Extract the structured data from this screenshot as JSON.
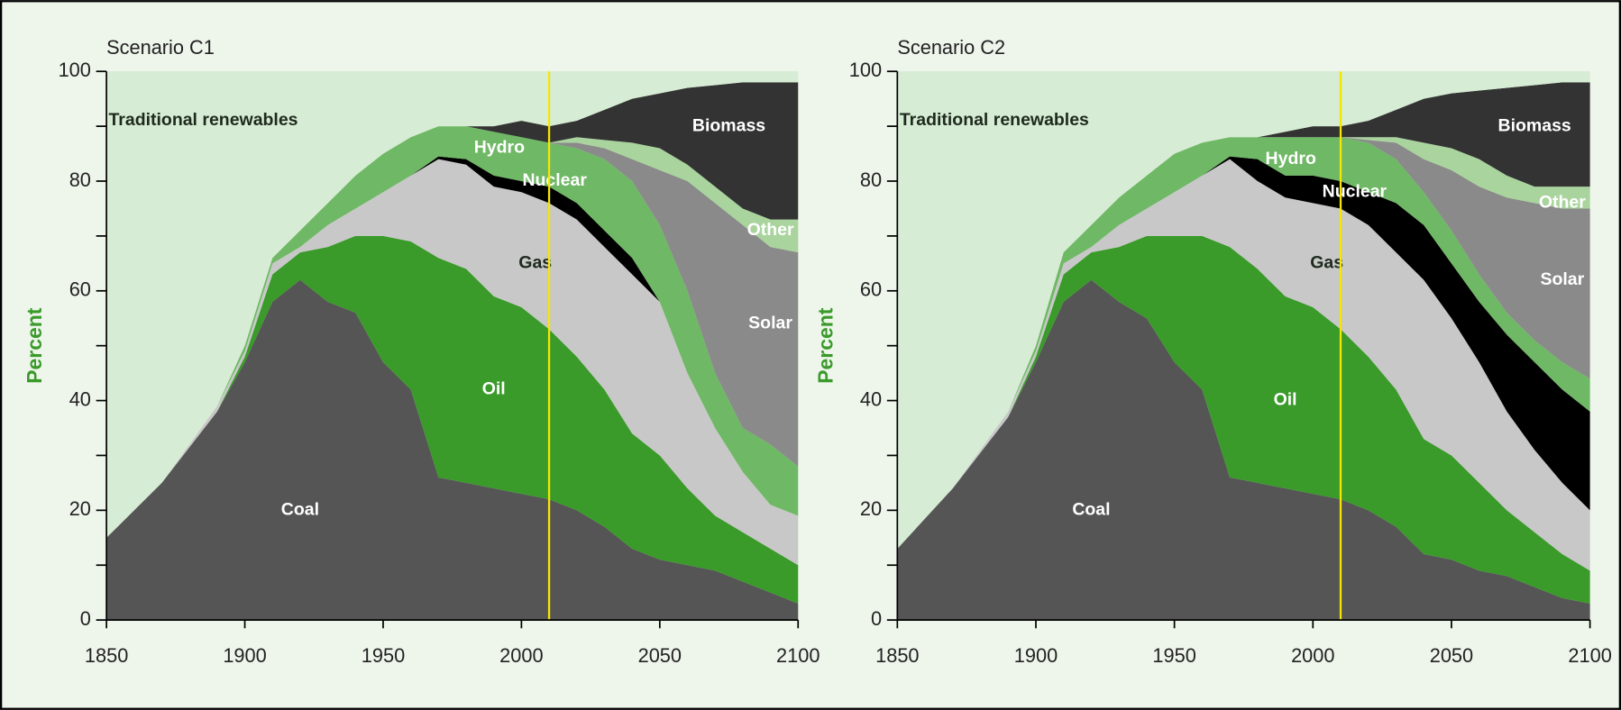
{
  "chart_data": [
    {
      "type": "area",
      "stacked": true,
      "title": "Scenario C1",
      "ylabel": "Percent",
      "ylabel_color": "#3a9a2a",
      "x": [
        1850,
        1870,
        1890,
        1900,
        1910,
        1920,
        1930,
        1940,
        1950,
        1960,
        1970,
        1980,
        1990,
        2000,
        2010,
        2020,
        2030,
        2040,
        2050,
        2060,
        2070,
        2080,
        2090,
        2100
      ],
      "xlim": [
        1850,
        2100
      ],
      "xticks": [
        1850,
        1900,
        1950,
        2000,
        2050,
        2100
      ],
      "ylim": [
        0,
        100
      ],
      "yticks": [
        0,
        20,
        40,
        60,
        80,
        100
      ],
      "yminorticks": [
        10,
        30,
        50,
        70,
        90
      ],
      "vline": 2010,
      "vline_color": "#f5e600",
      "series": [
        {
          "name": "Coal",
          "color": "#555555",
          "values": [
            15,
            25,
            38,
            47,
            58,
            62,
            58,
            56,
            47,
            42,
            26,
            25,
            24,
            23,
            22,
            20,
            17,
            13,
            11,
            10,
            9,
            7,
            5,
            3
          ]
        },
        {
          "name": "Oil",
          "color": "#3a9a2a",
          "values": [
            0,
            0,
            0,
            1,
            5,
            5,
            10,
            14,
            23,
            27,
            40,
            39,
            35,
            34,
            31,
            28,
            25,
            21,
            19,
            14,
            10,
            9,
            8,
            7
          ]
        },
        {
          "name": "Gas",
          "color": "#c8c8c8",
          "values": [
            0,
            0,
            1,
            1,
            2,
            1,
            4,
            5,
            8,
            12,
            18,
            19,
            20,
            21,
            23,
            25,
            26,
            29,
            28,
            21,
            16,
            11,
            8,
            9
          ]
        },
        {
          "name": "Nuclear",
          "color": "#000000",
          "values": [
            0,
            0,
            0,
            0,
            0,
            0,
            0,
            0,
            0,
            0,
            0.5,
            1,
            2,
            2,
            3,
            3,
            3,
            3,
            0,
            0,
            0,
            0,
            0,
            0
          ]
        },
        {
          "name": "Hydro",
          "color": "#6fb865",
          "values": [
            0,
            0,
            0,
            1,
            1,
            3,
            4,
            6,
            7,
            7,
            5.5,
            6,
            8,
            8,
            8,
            10,
            13,
            14,
            14,
            15,
            10,
            8,
            11,
            9
          ]
        },
        {
          "name": "Solar",
          "color": "#8a8a8a",
          "values": [
            0,
            0,
            0,
            0,
            0,
            0,
            0,
            0,
            0,
            0,
            0,
            0,
            0,
            0,
            0,
            1,
            2,
            4,
            10,
            20,
            31,
            37,
            36,
            39
          ]
        },
        {
          "name": "Other",
          "color": "#a9d49d",
          "values": [
            0,
            0,
            0,
            0,
            0,
            0,
            0,
            0,
            0,
            0,
            0,
            0,
            0,
            0,
            0,
            1,
            1.5,
            3,
            4,
            3,
            3,
            3,
            5,
            6
          ]
        },
        {
          "name": "Biomass",
          "color": "#333333",
          "values": [
            0,
            0,
            0,
            0,
            0,
            0,
            0,
            0,
            0,
            0,
            0,
            0,
            1,
            3,
            3,
            3,
            5.5,
            8,
            10,
            14,
            18.5,
            23,
            25,
            25
          ]
        },
        {
          "name": "Traditional renewables",
          "color": "#d6ecd4",
          "values": [
            85,
            75,
            61,
            50,
            34,
            29,
            24,
            19,
            15,
            12,
            10,
            10,
            10,
            9,
            10,
            9,
            7,
            5,
            4,
            3,
            2.5,
            2,
            2,
            2
          ]
        }
      ]
    },
    {
      "type": "area",
      "stacked": true,
      "title": "Scenario C2",
      "ylabel": "Percent",
      "ylabel_color": "#3a9a2a",
      "x": [
        1850,
        1870,
        1890,
        1900,
        1910,
        1920,
        1930,
        1940,
        1950,
        1960,
        1970,
        1980,
        1990,
        2000,
        2010,
        2020,
        2030,
        2040,
        2050,
        2060,
        2070,
        2080,
        2090,
        2100
      ],
      "xlim": [
        1850,
        2100
      ],
      "xticks": [
        1850,
        1900,
        1950,
        2000,
        2050,
        2100
      ],
      "ylim": [
        0,
        100
      ],
      "yticks": [
        0,
        20,
        40,
        60,
        80,
        100
      ],
      "yminorticks": [
        10,
        30,
        50,
        70,
        90
      ],
      "vline": 2010,
      "vline_color": "#f5e600",
      "series": [
        {
          "name": "Coal",
          "color": "#555555",
          "values": [
            13,
            24,
            37,
            47,
            58,
            62,
            58,
            55,
            47,
            42,
            26,
            25,
            24,
            23,
            22,
            20,
            17,
            12,
            11,
            9,
            8,
            6,
            4,
            3
          ]
        },
        {
          "name": "Oil",
          "color": "#3a9a2a",
          "values": [
            0,
            0,
            0,
            1,
            5,
            5,
            10,
            15,
            23,
            28,
            42,
            39,
            35,
            34,
            31,
            28,
            25,
            21,
            19,
            16,
            12,
            10,
            8,
            6
          ]
        },
        {
          "name": "Gas",
          "color": "#c8c8c8",
          "values": [
            0,
            0,
            1,
            1,
            2,
            1,
            4,
            5,
            8,
            11,
            16,
            16,
            18,
            19,
            22,
            24,
            25,
            29,
            25,
            22,
            18,
            15,
            13,
            11
          ]
        },
        {
          "name": "Nuclear",
          "color": "#000000",
          "values": [
            0,
            0,
            0,
            0,
            0,
            0,
            0,
            0,
            0,
            0,
            0.5,
            4,
            4,
            5,
            5,
            6,
            9,
            10,
            10,
            11,
            14,
            16,
            17,
            18
          ]
        },
        {
          "name": "Hydro",
          "color": "#6fb865",
          "values": [
            0,
            0,
            0,
            1,
            2,
            4,
            5,
            6,
            7,
            6,
            3.5,
            4,
            7,
            7,
            8,
            9,
            8,
            6,
            6,
            5,
            4,
            4,
            5,
            6
          ]
        },
        {
          "name": "Solar",
          "color": "#8a8a8a",
          "values": [
            0,
            0,
            0,
            0,
            0,
            0,
            0,
            0,
            0,
            0,
            0,
            0,
            0,
            0,
            0,
            0.5,
            3,
            6,
            11,
            16,
            21,
            25,
            28,
            31
          ]
        },
        {
          "name": "Other",
          "color": "#a9d49d",
          "values": [
            0,
            0,
            0,
            0,
            0,
            0,
            0,
            0,
            0,
            0,
            0,
            0,
            0,
            0,
            0,
            0.5,
            1,
            3,
            4,
            5,
            4,
            3,
            4,
            4
          ]
        },
        {
          "name": "Biomass",
          "color": "#333333",
          "values": [
            0,
            0,
            0,
            0,
            0,
            0,
            0,
            0,
            0,
            0,
            0,
            0,
            1,
            2,
            2,
            3,
            5,
            8,
            10,
            12.5,
            16,
            18.5,
            19,
            19
          ]
        },
        {
          "name": "Traditional renewables",
          "color": "#d6ecd4",
          "values": [
            87,
            76,
            62,
            50,
            33,
            28,
            23,
            19,
            15,
            13,
            12,
            12,
            11,
            10,
            10,
            9,
            7,
            5,
            4,
            3.5,
            3,
            2.5,
            2,
            2
          ]
        }
      ]
    }
  ]
}
